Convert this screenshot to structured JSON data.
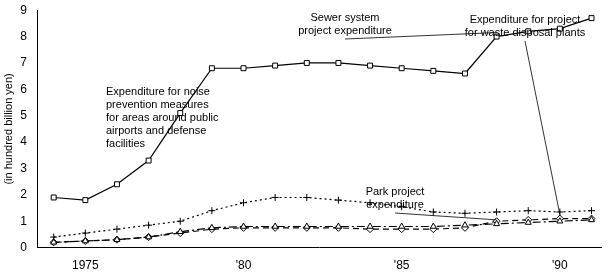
{
  "chart_data": {
    "type": "line",
    "y_label": "(in hundred billion yen)",
    "x": [
      1974,
      1975,
      1976,
      1977,
      1978,
      1979,
      1980,
      1981,
      1982,
      1983,
      1984,
      1985,
      1986,
      1987,
      1988,
      1989,
      1990,
      1991
    ],
    "xlim": [
      1973.5,
      1991.3
    ],
    "xticks": [
      {
        "value": 1975,
        "label": "1975"
      },
      {
        "value": 1980,
        "label": "'80"
      },
      {
        "value": 1985,
        "label": "'85"
      },
      {
        "value": 1990,
        "label": "'90"
      }
    ],
    "ylim": [
      0,
      9
    ],
    "yticks": [
      0,
      1,
      2,
      3,
      4,
      5,
      6,
      7,
      8,
      9
    ],
    "grid": false,
    "series": [
      {
        "name": "Sewer system project expenditure",
        "color": "#000000",
        "marker": "square",
        "line_style": "solid",
        "values": [
          1.9,
          1.8,
          2.4,
          3.3,
          5.1,
          6.8,
          6.8,
          6.9,
          7.0,
          7.0,
          6.9,
          6.8,
          6.7,
          6.6,
          8.0,
          8.2,
          8.3,
          8.7
        ]
      },
      {
        "name": "Expenditure for noise prevention measures for areas around public airports and defense facilities",
        "color": "#000000",
        "marker": "cross",
        "line_style": "dotted",
        "values": [
          0.4,
          0.55,
          0.7,
          0.85,
          1.0,
          1.4,
          1.7,
          1.9,
          1.9,
          1.8,
          1.7,
          1.55,
          1.35,
          1.3,
          1.35,
          1.4,
          1.35,
          1.4
        ]
      },
      {
        "name": "Park project expenditure",
        "color": "#000000",
        "marker": "triangle",
        "line_style": "dashdot",
        "values": [
          0.2,
          0.25,
          0.3,
          0.4,
          0.6,
          0.75,
          0.8,
          0.8,
          0.8,
          0.8,
          0.8,
          0.8,
          0.8,
          0.85,
          0.9,
          0.95,
          1.0,
          1.05
        ]
      },
      {
        "name": "Expenditure for project for waste disposal plants",
        "color": "#000000",
        "marker": "diamond",
        "line_style": "dashed",
        "values": [
          0.2,
          0.25,
          0.3,
          0.4,
          0.55,
          0.7,
          0.75,
          0.75,
          0.75,
          0.75,
          0.7,
          0.7,
          0.7,
          0.75,
          1.0,
          1.05,
          1.1,
          1.1
        ]
      }
    ]
  }
}
